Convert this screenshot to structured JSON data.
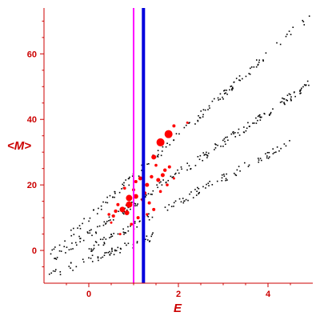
{
  "chart_data": {
    "type": "scatter",
    "xlabel": "E",
    "ylabel": "<M>",
    "xlim": [
      -1,
      5
    ],
    "ylim": [
      -10,
      74
    ],
    "x_ticks": [
      0,
      2,
      4
    ],
    "y_ticks": [
      0,
      20,
      40,
      60
    ],
    "x_tick_labels": [
      "0",
      "2",
      "4"
    ],
    "y_tick_labels": [
      "0",
      "20",
      "40",
      "60"
    ],
    "grid": false,
    "legend": "none",
    "colors": {
      "axis": "#cc0000",
      "labels": "#cc0000",
      "black_points": "#000000",
      "red_points": "#ff0000",
      "magenta_line": "#ff00ff",
      "blue_line": "#0000dd"
    },
    "vertical_lines": [
      {
        "x": 1.0,
        "color": "#ff00ff"
      },
      {
        "x": 1.22,
        "color": "#0000dd"
      }
    ],
    "black_bands": [
      {
        "x_start": -0.9,
        "x_end": 4.95,
        "slope": 12.5,
        "intercept": 10,
        "count": 140
      },
      {
        "x_start": -0.8,
        "x_end": 4.95,
        "slope": 9.3,
        "intercept": 5,
        "count": 190
      },
      {
        "x_start": 0.0,
        "x_end": 4.5,
        "slope": 7.2,
        "intercept": 0.5,
        "count": 120
      },
      {
        "x_start": -0.9,
        "x_end": 1.5,
        "slope": 5.0,
        "intercept": -3,
        "count": 60
      }
    ],
    "red_points": [
      {
        "x": 1.6,
        "y": 33,
        "size": 5
      },
      {
        "x": 1.78,
        "y": 35.5,
        "size": 5
      },
      {
        "x": 1.45,
        "y": 28.5,
        "size": 3
      },
      {
        "x": 1.9,
        "y": 38,
        "size": 2
      },
      {
        "x": 2.2,
        "y": 39,
        "size": 1.5
      },
      {
        "x": 0.9,
        "y": 16,
        "size": 4
      },
      {
        "x": 0.9,
        "y": 14,
        "size": 4
      },
      {
        "x": 0.75,
        "y": 12.5,
        "size": 3.5
      },
      {
        "x": 0.85,
        "y": 11.5,
        "size": 3
      },
      {
        "x": 1.05,
        "y": 16.5,
        "size": 3
      },
      {
        "x": 1.15,
        "y": 22,
        "size": 2.5
      },
      {
        "x": 1.3,
        "y": 20,
        "size": 2.5
      },
      {
        "x": 1.55,
        "y": 21.5,
        "size": 2.5
      },
      {
        "x": 1.65,
        "y": 23,
        "size": 2.5
      },
      {
        "x": 1.7,
        "y": 24.5,
        "size": 2.2
      },
      {
        "x": 1.8,
        "y": 25.5,
        "size": 2
      },
      {
        "x": 1.4,
        "y": 22.5,
        "size": 2.2
      },
      {
        "x": 1.25,
        "y": 17.5,
        "size": 2.2
      },
      {
        "x": 1.35,
        "y": 14.5,
        "size": 2
      },
      {
        "x": 1.45,
        "y": 12.5,
        "size": 2
      },
      {
        "x": 1.1,
        "y": 10,
        "size": 2
      },
      {
        "x": 0.95,
        "y": 8,
        "size": 1.8
      },
      {
        "x": 0.7,
        "y": 5,
        "size": 1.5
      },
      {
        "x": 0.55,
        "y": 10.5,
        "size": 2
      },
      {
        "x": 0.6,
        "y": 12,
        "size": 2.2
      },
      {
        "x": 0.45,
        "y": 11,
        "size": 1.8
      },
      {
        "x": 1.0,
        "y": 18.5,
        "size": 2
      },
      {
        "x": 1.2,
        "y": 15.5,
        "size": 2
      },
      {
        "x": 1.6,
        "y": 18,
        "size": 1.8
      },
      {
        "x": 1.75,
        "y": 20,
        "size": 1.8
      },
      {
        "x": 1.5,
        "y": 26,
        "size": 1.8
      },
      {
        "x": 0.8,
        "y": 19,
        "size": 1.8
      },
      {
        "x": 0.65,
        "y": 14,
        "size": 2
      },
      {
        "x": 1.05,
        "y": 21,
        "size": 2
      },
      {
        "x": 1.9,
        "y": 22,
        "size": 1.5
      },
      {
        "x": 1.3,
        "y": 11,
        "size": 1.6
      },
      {
        "x": 0.5,
        "y": 8.5,
        "size": 1.5
      }
    ]
  }
}
